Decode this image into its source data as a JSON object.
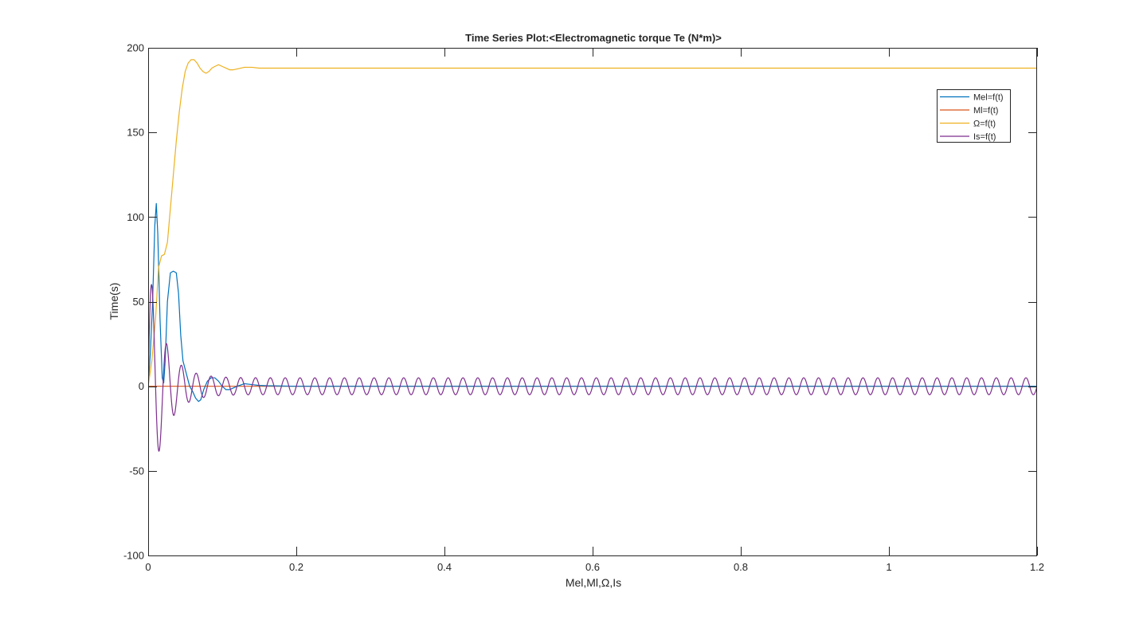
{
  "chart_data": {
    "type": "line",
    "title": "Time Series Plot:<Electromagnetic torque Te (N*m)>",
    "xlabel": "Mel,Ml,Ω,Is",
    "ylabel": "Time(s)",
    "xlim": [
      0,
      1.2
    ],
    "ylim": [
      -100,
      200
    ],
    "xticks": [
      0,
      0.2,
      0.4,
      0.6,
      0.8,
      1,
      1.2
    ],
    "xtick_labels": [
      "0",
      "0.2",
      "0.4",
      "0.6",
      "0.8",
      "1",
      "1.2"
    ],
    "yticks": [
      -100,
      -50,
      0,
      50,
      100,
      150,
      200
    ],
    "ytick_labels": [
      "-100",
      "-50",
      "0",
      "50",
      "100",
      "150",
      "200"
    ],
    "grid": false,
    "legend_position": "top-right",
    "series": [
      {
        "name": "Mel=f(t)",
        "color": "#0072BD",
        "x": [
          0,
          0.003,
          0.006,
          0.009,
          0.011,
          0.013,
          0.016,
          0.019,
          0.021,
          0.023,
          0.026,
          0.03,
          0.034,
          0.038,
          0.041,
          0.044,
          0.047,
          0.05,
          0.053,
          0.056,
          0.06,
          0.064,
          0.068,
          0.071,
          0.075,
          0.08,
          0.085,
          0.09,
          0.095,
          0.1,
          0.105,
          0.11,
          0.12,
          0.13,
          0.14,
          0.15,
          0.16,
          0.2,
          0.4,
          0.6,
          0.8,
          1.0,
          1.2
        ],
        "y": [
          0,
          20,
          50,
          95,
          108,
          90,
          40,
          5,
          2,
          15,
          50,
          67,
          68,
          67,
          55,
          30,
          15,
          10,
          5,
          0,
          -3,
          -7,
          -9,
          -8,
          -2,
          3,
          5,
          5,
          3,
          0,
          -2,
          -2,
          0,
          1.5,
          1,
          0.5,
          0.3,
          0,
          0,
          0,
          0,
          0,
          0
        ]
      },
      {
        "name": "Ml=f(t)",
        "color": "#D95319",
        "x": [
          0,
          1.2
        ],
        "y": [
          0,
          0
        ]
      },
      {
        "name": "Ω=f(t)",
        "color": "#EDB120",
        "x": [
          0,
          0.005,
          0.01,
          0.014,
          0.018,
          0.022,
          0.026,
          0.03,
          0.034,
          0.038,
          0.042,
          0.046,
          0.05,
          0.054,
          0.058,
          0.062,
          0.066,
          0.07,
          0.074,
          0.078,
          0.082,
          0.086,
          0.09,
          0.095,
          0.1,
          0.105,
          0.11,
          0.115,
          0.12,
          0.13,
          0.14,
          0.15,
          0.16,
          0.2,
          0.4,
          0.6,
          0.8,
          1.0,
          1.2
        ],
        "y": [
          0,
          15,
          40,
          70,
          77,
          78,
          85,
          105,
          125,
          145,
          162,
          176,
          186,
          191,
          193,
          193,
          191,
          188,
          186,
          185,
          186,
          188,
          189,
          190,
          189,
          188,
          187,
          187,
          187.5,
          188.5,
          188.5,
          188,
          188,
          188,
          188,
          188,
          188,
          188,
          188
        ]
      },
      {
        "name": "Is=f(t)",
        "color": "#7E2F8E",
        "generator": {
          "kind": "decaying-sinusoid",
          "start": 0,
          "end": 1.2,
          "step": 0.0005,
          "frequency_hz": 50,
          "steady_amplitude": 5,
          "transient_amplitude": 70,
          "transient_decay": 0.02
        }
      }
    ]
  }
}
